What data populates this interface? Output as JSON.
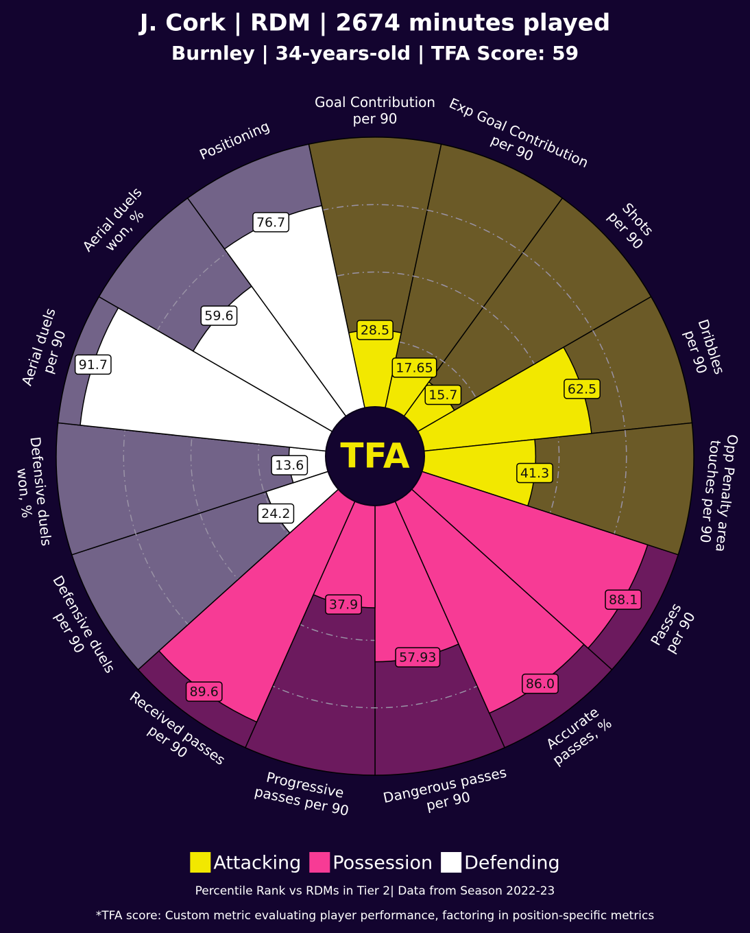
{
  "chart_data": {
    "type": "pizza",
    "title": "J. Cork | RDM | 2674 minutes played",
    "subtitle": "Burnley | 34-years-old | TFA Score: 59",
    "center_text": "TFA",
    "categories": [
      [
        "Goal Contribution",
        "per 90"
      ],
      [
        "Exp Goal Contribution",
        "per 90"
      ],
      [
        "Shots",
        "per 90"
      ],
      [
        "Dribbles",
        "per 90"
      ],
      [
        "Opp Penalty area",
        "touches per 90"
      ],
      [
        "Passes",
        "per 90"
      ],
      [
        "Accurate",
        "passes, %"
      ],
      [
        "Dangerous passes",
        "per 90"
      ],
      [
        "Progressive",
        "passes per 90"
      ],
      [
        "Received passes",
        "per 90"
      ],
      [
        "Defensive duels",
        "per 90"
      ],
      [
        "Defensive duels",
        "won, %"
      ],
      [
        "Aerial duels",
        "per 90"
      ],
      [
        "Aerial duels",
        "won, %"
      ],
      [
        "Positioning"
      ]
    ],
    "series": [
      {
        "name": "Attacking",
        "color": "#f2e800",
        "background": "#6b5a27",
        "values": [
          28.5,
          17.65,
          15.7,
          62.5,
          41.3,
          null,
          null,
          null,
          null,
          null,
          null,
          null,
          null,
          null,
          null
        ],
        "value_labels": [
          "28.5",
          "17.65",
          "15.7",
          "62.5",
          "41.3",
          null,
          null,
          null,
          null,
          null,
          null,
          null,
          null,
          null,
          null
        ]
      },
      {
        "name": "Possession",
        "color": "#f73b95",
        "background": "#6c1a5e",
        "values": [
          null,
          null,
          null,
          null,
          null,
          88.1,
          86.0,
          57.93,
          37.9,
          89.6,
          null,
          null,
          null,
          null,
          null
        ],
        "value_labels": [
          null,
          null,
          null,
          null,
          null,
          "88.1",
          "86.0",
          "57.93",
          "37.9",
          "89.6",
          null,
          null,
          null,
          null,
          null
        ]
      },
      {
        "name": "Defending",
        "color": "#ffffff",
        "background": "#726388",
        "values": [
          null,
          null,
          null,
          null,
          null,
          null,
          null,
          null,
          null,
          null,
          24.2,
          13.6,
          91.7,
          59.6,
          76.7
        ],
        "value_labels": [
          null,
          null,
          null,
          null,
          null,
          null,
          null,
          null,
          null,
          null,
          "24.2",
          "13.6",
          "91.7",
          "59.6",
          "76.7"
        ]
      }
    ],
    "ylim": [
      0,
      100
    ],
    "yticks": [
      25,
      50,
      75
    ],
    "grid": true,
    "footnotes": [
      "Percentile Rank vs RDMs in Tier 2| Data from Season 2022-23",
      "*TFA score: Custom metric evaluating player performance, factoring in position-specific metrics"
    ]
  }
}
